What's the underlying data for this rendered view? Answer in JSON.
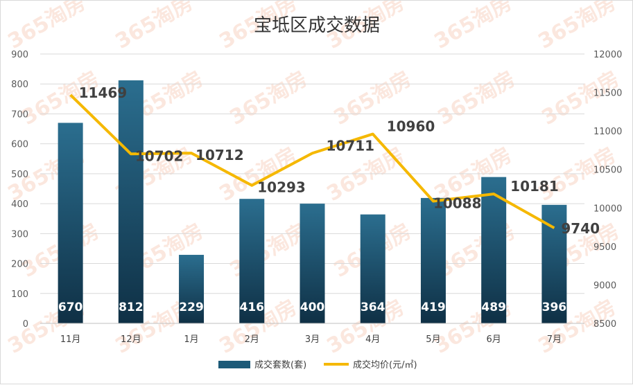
{
  "chart_data": {
    "type": "bar+line",
    "title": "宝坻区成交数据",
    "categories": [
      "11月",
      "12月",
      "1月",
      "2月",
      "3月",
      "4月",
      "5月",
      "6月",
      "7月"
    ],
    "series": [
      {
        "name": "成交套数(套)",
        "type": "bar",
        "axis": "left",
        "values": [
          670,
          812,
          229,
          416,
          400,
          364,
          419,
          489,
          396
        ],
        "color": "#1c5a78"
      },
      {
        "name": "成交均价(元/㎡)",
        "type": "line",
        "axis": "right",
        "values": [
          11469,
          10702,
          10712,
          10293,
          10711,
          10960,
          10088,
          10181,
          9740
        ],
        "color": "#f5b800"
      }
    ],
    "y_left": {
      "min": 0,
      "max": 900,
      "step": 100,
      "ticks": [
        "0",
        "100",
        "200",
        "300",
        "400",
        "500",
        "600",
        "700",
        "800",
        "900"
      ]
    },
    "y_right": {
      "min": 8500,
      "max": 12000,
      "step": 500,
      "ticks": [
        "8500",
        "9000",
        "9500",
        "10000",
        "10500",
        "11000",
        "11500",
        "12000"
      ]
    },
    "grid": true,
    "legend_position": "bottom",
    "watermark_text": "365淘房"
  }
}
